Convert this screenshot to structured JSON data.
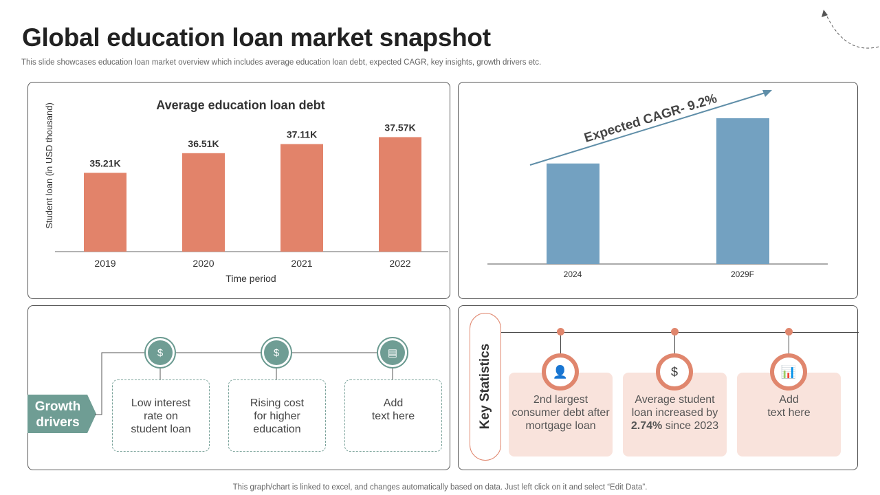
{
  "title": "Global education loan market snapshot",
  "subtitle": "This slide showcases education loan market overview which includes average education loan debt, expected CAGR, key insights, growth drivers etc.",
  "footer": "This graph/chart is linked to excel, and changes automatically based on data. Just left click on it and select “Edit Data”.",
  "colors": {
    "bar_left": "#e2836a",
    "bar_right": "#73a1c1",
    "teal": "#6f9d94",
    "salmon": "#e0866d",
    "card": "#f9e3dc"
  },
  "chart_data": [
    {
      "type": "bar",
      "title": "Average education loan debt",
      "xlabel": "Time period",
      "ylabel": "Student loan (in USD thousand)",
      "categories": [
        "2019",
        "2020",
        "2021",
        "2022"
      ],
      "values": [
        35.21,
        36.51,
        37.11,
        37.57
      ],
      "data_labels": [
        "35.21K",
        "36.51K",
        "37.11K",
        "37.57K"
      ],
      "ylim": [
        30,
        38.5
      ],
      "grid": false
    },
    {
      "type": "bar",
      "annotation": "Expected CAGR- 9.2%",
      "categories": [
        "2024",
        "2029F"
      ],
      "values": [
        1.0,
        1.45
      ],
      "grid": false
    }
  ],
  "growth": {
    "label_line1": "Growth",
    "label_line2": "drivers",
    "items": [
      {
        "icon": "money-bag-person-icon",
        "lines": [
          "Low interest",
          "rate on",
          "student loan"
        ]
      },
      {
        "icon": "money-bag-icon",
        "lines": [
          "Rising cost",
          "for higher",
          "education"
        ]
      },
      {
        "icon": "document-icon",
        "lines": [
          "Add",
          "text here",
          ""
        ]
      }
    ]
  },
  "stats": {
    "label": "Key Statistics",
    "items": [
      {
        "icon": "person-money-icon",
        "lines": [
          "2nd largest",
          "consumer debt after",
          "mortgage loan"
        ]
      },
      {
        "icon": "hand-plant-dollar-icon",
        "lines": [
          "Average student",
          "loan increased by"
        ],
        "bold": "2.74%",
        "rest": " since 2023"
      },
      {
        "icon": "chart-search-icon",
        "lines": [
          "Add",
          "text here"
        ]
      }
    ]
  }
}
